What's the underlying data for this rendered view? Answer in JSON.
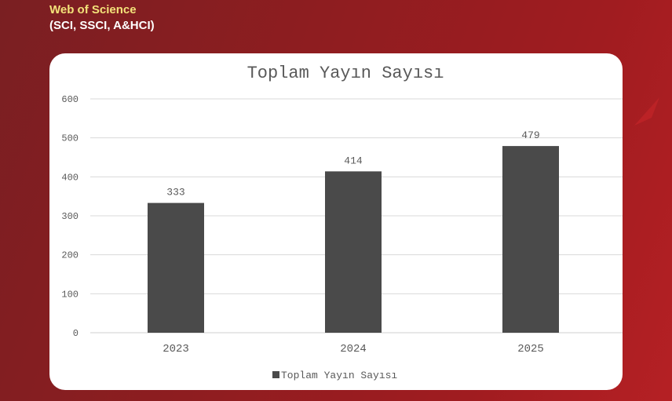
{
  "header": {
    "line1": "Web of Science",
    "line2": "(SCI, SSCI, A&HCI)"
  },
  "chart_data": {
    "type": "bar",
    "title": "Toplam Yayın Sayısı",
    "categories": [
      "2023",
      "2024",
      "2025"
    ],
    "series": [
      {
        "name": "Toplam Yayın Sayısı",
        "values": [
          333,
          414,
          479
        ],
        "color": "#4a4a4a"
      }
    ],
    "data_labels": [
      "333",
      "414",
      "479"
    ],
    "yticks": [
      "0",
      "100",
      "200",
      "300",
      "400",
      "500",
      "600"
    ],
    "ylim": [
      0,
      600
    ],
    "grid": true,
    "legend": "bottom"
  }
}
